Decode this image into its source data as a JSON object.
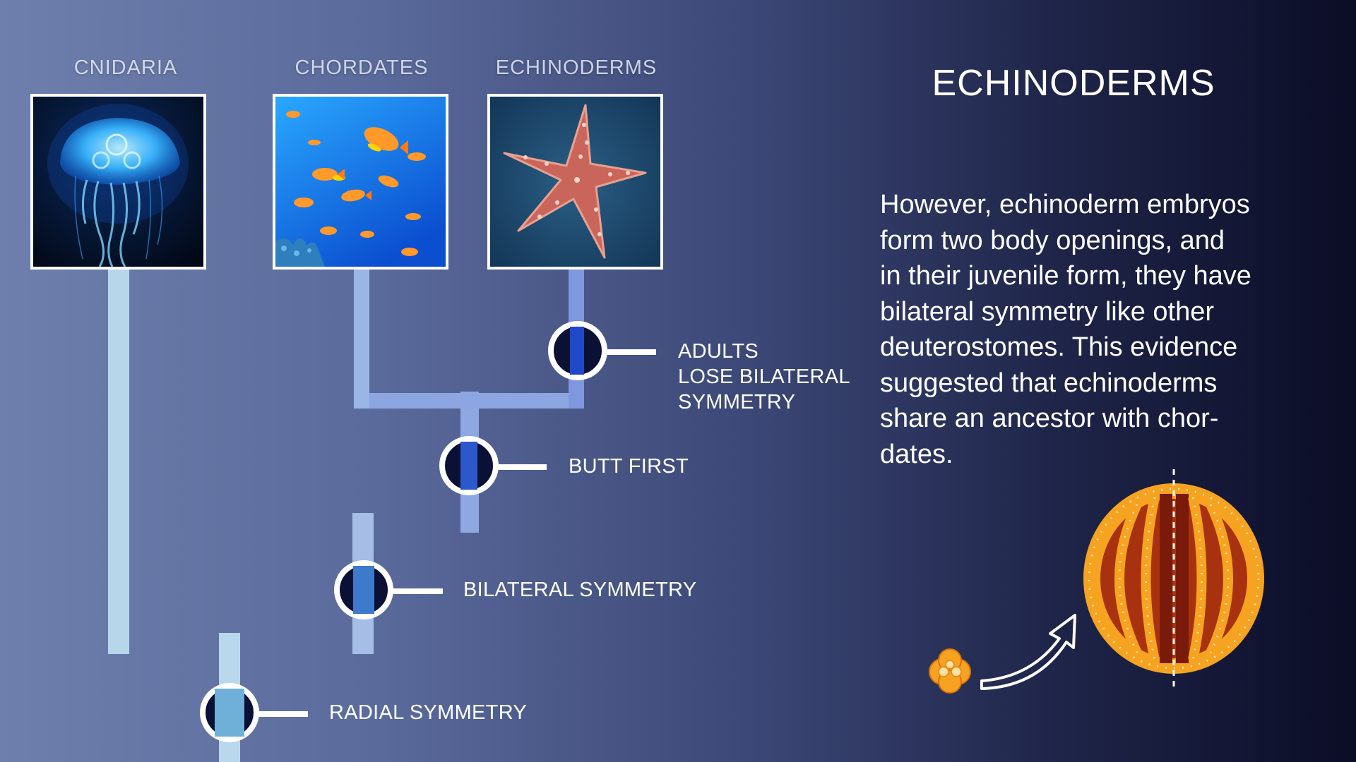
{
  "diagram": {
    "taxa": [
      {
        "label": "CNIDARIA",
        "image": "jellyfish-photo"
      },
      {
        "label": "CHORDATES",
        "image": "fish-school-photo"
      },
      {
        "label": "ECHINODERMS",
        "image": "starfish-photo"
      }
    ],
    "nodes": [
      {
        "label_lines": [
          "ADULTS",
          "LOSE BILATERAL",
          "SYMMETRY"
        ]
      },
      {
        "label_lines": [
          "BUTT FIRST"
        ]
      },
      {
        "label_lines": [
          "BILATERAL SYMMETRY"
        ]
      },
      {
        "label_lines": [
          "RADIAL SYMMETRY"
        ]
      }
    ]
  },
  "panel": {
    "title": "ECHINODERMS",
    "body_lines": [
      "However, echinoderm embryos",
      "form two body openings, and",
      "in their juvenile form, they have",
      "bilateral symmetry like other",
      "deuterostomes. This evidence",
      "suggested that echinoderms",
      "share an ancestor with chor-",
      "dates."
    ]
  },
  "colors": {
    "branch_light": "#b6d4ea",
    "branch_blue": "#8aa3e2",
    "node_ring": "#ffffff",
    "node_fill": "#0b1035",
    "node_stripe": "#2a56c4",
    "embryo_outer": "#f5a321",
    "embryo_inner": "#7a1a0a"
  }
}
